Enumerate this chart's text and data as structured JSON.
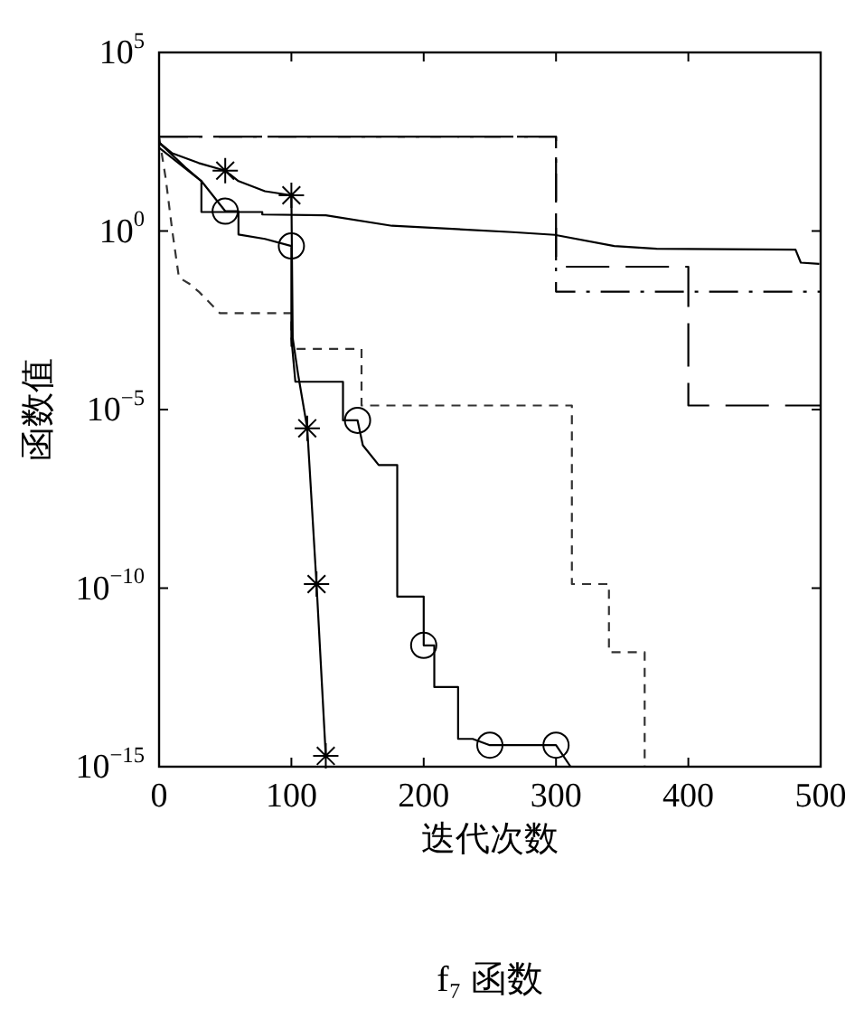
{
  "chart_data": {
    "type": "line",
    "title": "f₇ 函数",
    "xlabel": "迭代次数",
    "ylabel": "函数值",
    "log": "y",
    "grid": false,
    "xlim": [
      0,
      500
    ],
    "xticks": [
      0,
      100,
      200,
      300,
      400,
      500
    ],
    "ylim": [
      1e-15,
      100000.0
    ],
    "yticks": [
      {
        "value": 1e-15,
        "label": "10$^{−15}$"
      },
      {
        "value": 1e-10,
        "label": "10$^{−10}$"
      },
      {
        "value": 1e-05,
        "label": "10$^{−5}$"
      },
      {
        "value": 1,
        "label": "10$^{0}$"
      },
      {
        "value": 100000.0,
        "label": "10$^{5}$"
      }
    ],
    "series": [
      {
        "type": "line",
        "color": "#000000",
        "line_style": "longdash",
        "marker": "none",
        "x": [
          0,
          300,
          300,
          400,
          400,
          500
        ],
        "values": [
          437,
          437,
          0.1,
          0.1,
          1.3e-05,
          1.3e-05
        ]
      },
      {
        "type": "line",
        "color": "#000000",
        "line_style": "dashdot",
        "marker": "none",
        "x": [
          0,
          300,
          300,
          500
        ],
        "values": [
          437,
          437,
          0.02,
          0.02
        ]
      },
      {
        "type": "line",
        "color": "#333333",
        "line_style": "dashed",
        "marker": "none",
        "x": [
          0,
          5,
          10,
          15,
          23,
          30,
          46,
          100,
          100,
          153,
          153,
          312,
          312,
          340,
          340,
          367,
          367,
          400
        ],
        "values": [
          437,
          30,
          1,
          0.05,
          0.033,
          0.02,
          0.005,
          0.005,
          0.0005,
          0.0005,
          1.3e-05,
          1.3e-05,
          1.3e-10,
          1.3e-10,
          1.6e-12,
          1.6e-12,
          1e-15,
          1e-15
        ]
      },
      {
        "type": "line",
        "color": "#000000",
        "line_style": "solid",
        "marker": "none",
        "x": [
          0,
          32,
          32,
          78,
          78,
          126,
          176,
          230,
          267,
          299,
          344,
          376,
          481,
          485,
          499
        ],
        "values": [
          215,
          25,
          3.4,
          3.4,
          2.9,
          2.75,
          1.4,
          1.1,
          0.93,
          0.78,
          0.38,
          0.32,
          0.3,
          0.13,
          0.12
        ]
      },
      {
        "type": "line",
        "color": "#000000",
        "line_style": "solid",
        "marker": "none",
        "x": [
          0,
          10,
          30,
          50,
          60,
          80,
          100,
          101,
          105,
          112,
          119,
          126
        ],
        "values": [
          300,
          150,
          80,
          49,
          25,
          13,
          10,
          0.001,
          0.0001,
          3e-06,
          1.3e-10,
          2e-15
        ]
      },
      {
        "type": "line",
        "color": "#000000",
        "line_style": "solid",
        "marker": "none",
        "x": [
          0,
          20,
          32,
          50,
          60,
          60,
          80,
          100,
          100,
          103,
          106,
          139,
          139,
          150,
          154,
          166,
          180,
          180,
          200,
          200,
          208,
          208,
          226,
          226,
          237,
          250,
          300,
          311
        ],
        "values": [
          300,
          60,
          25,
          3.6,
          3.6,
          0.8,
          0.6,
          0.38,
          0.001,
          6e-05,
          6e-05,
          6e-05,
          5e-06,
          5e-06,
          1e-06,
          2.8e-07,
          2.8e-07,
          5.8e-11,
          5.8e-11,
          2.5e-12,
          2.5e-12,
          1.7e-13,
          1.7e-13,
          6e-15,
          6e-15,
          4e-15,
          4e-15,
          1e-15
        ]
      },
      {
        "type": "scatter",
        "color": "#000000",
        "marker": "cross",
        "x": [
          50,
          100,
          112,
          119,
          126
        ],
        "values": [
          49,
          10,
          3e-06,
          1.3e-10,
          2e-15
        ]
      },
      {
        "type": "scatter",
        "color": "#000000",
        "marker": "circle",
        "x": [
          50,
          100,
          150,
          200,
          250,
          300
        ],
        "values": [
          3.6,
          0.38,
          5e-06,
          2.5e-12,
          4e-15,
          4e-15
        ]
      }
    ]
  }
}
